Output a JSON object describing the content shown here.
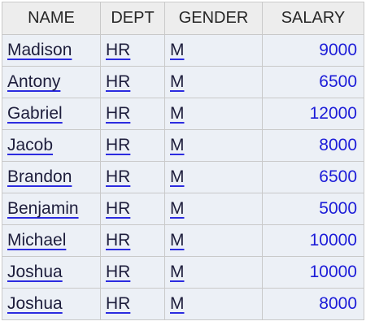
{
  "table": {
    "columns": [
      "NAME",
      "DEPT",
      "GENDER",
      "SALARY"
    ],
    "rows": [
      {
        "name": "Madison",
        "dept": "HR",
        "gender": "M",
        "salary": "9000"
      },
      {
        "name": "Antony",
        "dept": "HR",
        "gender": "M",
        "salary": "6500"
      },
      {
        "name": "Gabriel",
        "dept": "HR",
        "gender": "M",
        "salary": "12000"
      },
      {
        "name": "Jacob",
        "dept": "HR",
        "gender": "M",
        "salary": "8000"
      },
      {
        "name": "Brandon",
        "dept": "HR",
        "gender": "M",
        "salary": "6500"
      },
      {
        "name": "Benjamin",
        "dept": "HR",
        "gender": "M",
        "salary": "5000"
      },
      {
        "name": "Michael",
        "dept": "HR",
        "gender": "M",
        "salary": "10000"
      },
      {
        "name": "Joshua",
        "dept": "HR",
        "gender": "M",
        "salary": "10000"
      },
      {
        "name": "Joshua",
        "dept": "HR",
        "gender": "M",
        "salary": "8000"
      }
    ]
  },
  "colors": {
    "header_bg": "#ededed",
    "cell_bg": "#ecf0f6",
    "grid_line": "#c9c9c9",
    "number_text": "#1c1cd8",
    "underline": "#2b2be0"
  }
}
